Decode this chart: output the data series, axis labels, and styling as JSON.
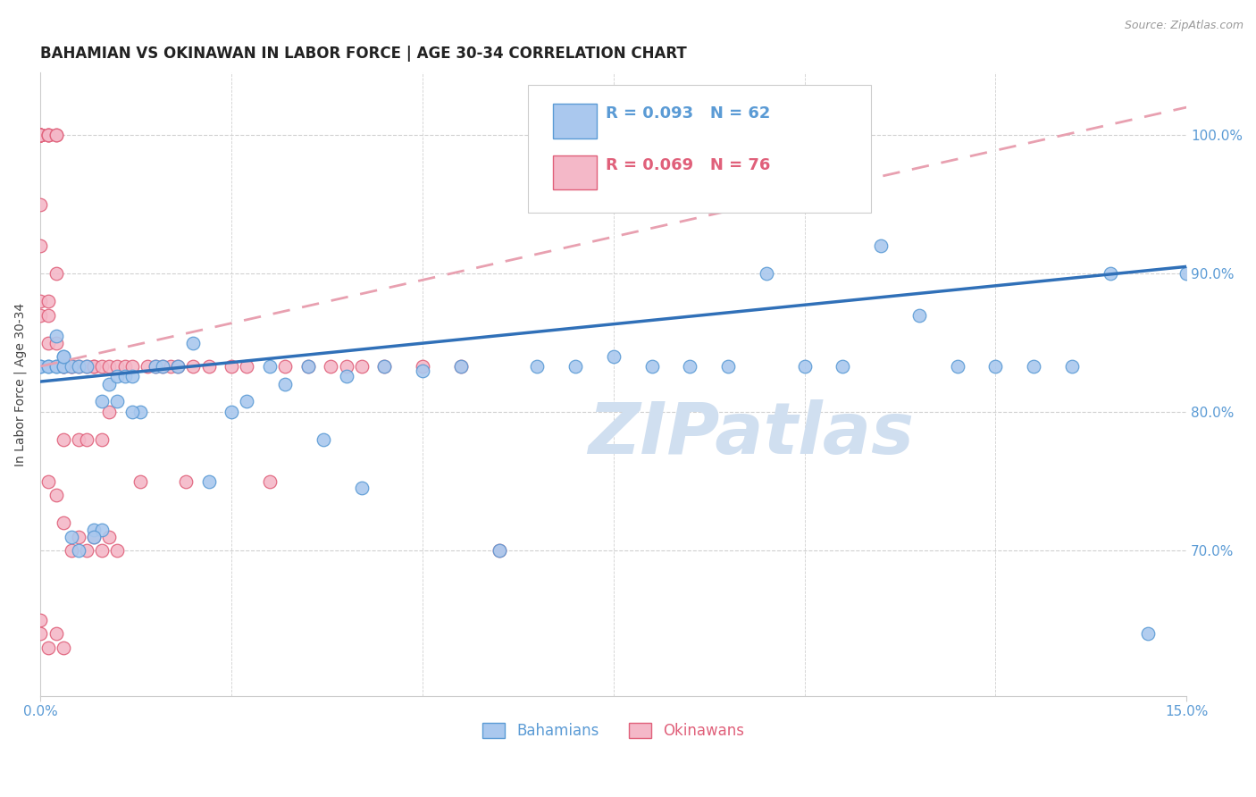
{
  "title": "BAHAMIAN VS OKINAWAN IN LABOR FORCE | AGE 30-34 CORRELATION CHART",
  "source": "Source: ZipAtlas.com",
  "ylabel": "In Labor Force | Age 30-34",
  "xlim": [
    0.0,
    0.15
  ],
  "ylim": [
    0.595,
    1.045
  ],
  "xticks": [
    0.0,
    0.15
  ],
  "xtick_labels": [
    "0.0%",
    "15.0%"
  ],
  "ytick_positions_right": [
    1.0,
    0.9,
    0.8,
    0.7
  ],
  "ytick_labels_right": [
    "100.0%",
    "90.0%",
    "80.0%",
    "70.0%"
  ],
  "bahamian_color": "#aac8ee",
  "bahamian_edge_color": "#5b9bd5",
  "okinawan_color": "#f4b8c8",
  "okinawan_edge_color": "#e0607a",
  "bahamian_label": "Bahamians",
  "okinawan_label": "Okinawans",
  "R_bahamian": 0.093,
  "N_bahamian": 62,
  "R_okinawan": 0.069,
  "N_okinawan": 76,
  "blue_line_color": "#3070b8",
  "pink_line_color": "#d04060",
  "pink_dash_color": "#e8a0b0",
  "watermark": "ZIPatlas",
  "watermark_color": "#d0dff0",
  "background_color": "#ffffff",
  "grid_color": "#d0d0d0",
  "axis_tick_color": "#5b9bd5",
  "title_fontsize": 12,
  "legend_fontsize": 13,
  "axis_label_fontsize": 10,
  "tick_fontsize": 11,
  "bah_line_y0": 0.822,
  "bah_line_y1": 0.905,
  "oki_line_y0": 0.833,
  "oki_line_y1": 1.02,
  "bahamian_x": [
    0.0,
    0.0,
    0.001,
    0.001,
    0.002,
    0.002,
    0.003,
    0.003,
    0.003,
    0.004,
    0.005,
    0.006,
    0.007,
    0.008,
    0.009,
    0.01,
    0.011,
    0.012,
    0.013,
    0.015,
    0.016,
    0.018,
    0.02,
    0.022,
    0.025,
    0.027,
    0.03,
    0.032,
    0.035,
    0.037,
    0.04,
    0.042,
    0.045,
    0.05,
    0.055,
    0.06,
    0.065,
    0.07,
    0.075,
    0.08,
    0.085,
    0.09,
    0.095,
    0.1,
    0.105,
    0.11,
    0.115,
    0.12,
    0.125,
    0.13,
    0.135,
    0.14,
    0.145,
    0.15,
    0.002,
    0.003,
    0.004,
    0.005,
    0.007,
    0.008,
    0.01,
    0.012
  ],
  "bahamian_y": [
    0.833,
    0.833,
    0.833,
    0.833,
    0.833,
    0.833,
    0.833,
    0.833,
    0.84,
    0.833,
    0.833,
    0.833,
    0.715,
    0.715,
    0.82,
    0.826,
    0.826,
    0.826,
    0.8,
    0.833,
    0.833,
    0.833,
    0.85,
    0.75,
    0.8,
    0.808,
    0.833,
    0.82,
    0.833,
    0.78,
    0.826,
    0.745,
    0.833,
    0.83,
    0.833,
    0.7,
    0.833,
    0.833,
    0.84,
    0.833,
    0.833,
    0.833,
    0.9,
    0.833,
    0.833,
    0.92,
    0.87,
    0.833,
    0.833,
    0.833,
    0.833,
    0.9,
    0.64,
    0.9,
    0.855,
    0.84,
    0.71,
    0.7,
    0.71,
    0.808,
    0.808,
    0.8
  ],
  "okinawan_x": [
    0.0,
    0.0,
    0.0,
    0.0,
    0.0,
    0.0,
    0.0,
    0.0,
    0.0,
    0.0,
    0.0,
    0.0,
    0.001,
    0.001,
    0.001,
    0.001,
    0.001,
    0.001,
    0.002,
    0.002,
    0.002,
    0.002,
    0.003,
    0.003,
    0.003,
    0.004,
    0.004,
    0.005,
    0.005,
    0.006,
    0.006,
    0.007,
    0.007,
    0.008,
    0.008,
    0.009,
    0.009,
    0.01,
    0.011,
    0.012,
    0.013,
    0.014,
    0.015,
    0.016,
    0.017,
    0.018,
    0.019,
    0.02,
    0.022,
    0.025,
    0.027,
    0.03,
    0.032,
    0.035,
    0.038,
    0.04,
    0.042,
    0.045,
    0.05,
    0.055,
    0.06,
    0.001,
    0.002,
    0.003,
    0.004,
    0.005,
    0.006,
    0.007,
    0.008,
    0.009,
    0.01,
    0.0,
    0.0,
    0.001,
    0.002,
    0.003
  ],
  "okinawan_y": [
    1.0,
    1.0,
    1.0,
    1.0,
    1.0,
    1.0,
    1.0,
    1.0,
    0.95,
    0.92,
    0.88,
    0.87,
    1.0,
    1.0,
    1.0,
    0.88,
    0.87,
    0.85,
    1.0,
    1.0,
    0.9,
    0.85,
    0.833,
    0.833,
    0.78,
    0.833,
    0.833,
    0.833,
    0.78,
    0.833,
    0.78,
    0.833,
    0.833,
    0.833,
    0.78,
    0.833,
    0.8,
    0.833,
    0.833,
    0.833,
    0.75,
    0.833,
    0.833,
    0.833,
    0.833,
    0.833,
    0.75,
    0.833,
    0.833,
    0.833,
    0.833,
    0.75,
    0.833,
    0.833,
    0.833,
    0.833,
    0.833,
    0.833,
    0.833,
    0.833,
    0.7,
    0.75,
    0.74,
    0.72,
    0.7,
    0.71,
    0.7,
    0.71,
    0.7,
    0.71,
    0.7,
    0.65,
    0.64,
    0.63,
    0.64,
    0.63
  ]
}
